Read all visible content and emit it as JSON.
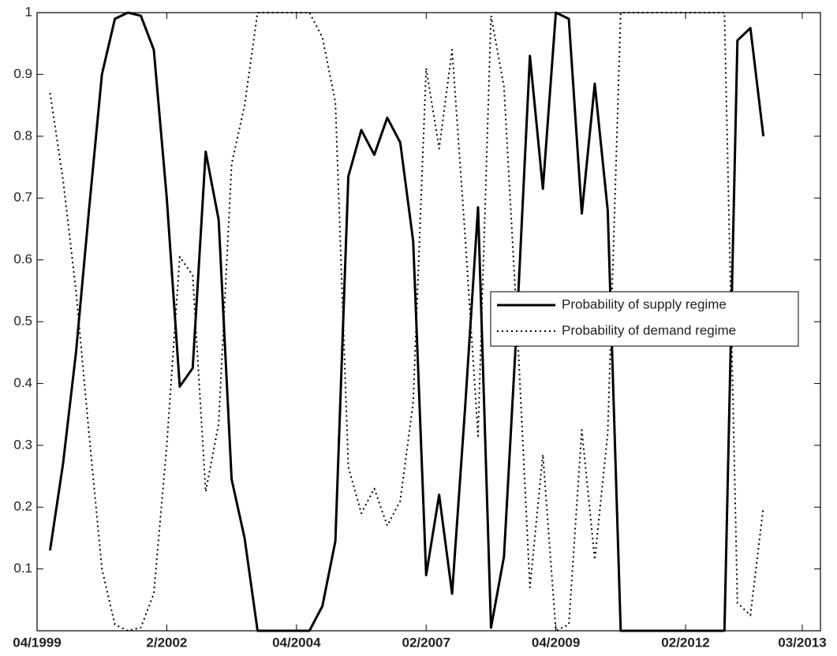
{
  "chart_data": {
    "type": "line",
    "x": [
      1,
      2,
      3,
      4,
      5,
      6,
      7,
      8,
      9,
      10,
      11,
      12,
      13,
      14,
      15,
      16,
      17,
      18,
      19,
      20,
      21,
      22,
      23,
      24,
      25,
      26,
      27,
      28,
      29,
      30,
      31,
      32,
      33,
      34,
      35,
      36,
      37,
      38,
      39,
      40,
      41,
      42,
      43,
      44,
      45,
      46,
      47,
      48,
      49,
      50,
      51,
      52,
      53,
      54,
      55,
      56
    ],
    "series": [
      {
        "name": "Probability of supply regime",
        "color": "#000000",
        "style": "solid",
        "values": [
          0.13,
          0.27,
          0.45,
          0.68,
          0.9,
          0.99,
          1,
          0.995,
          0.94,
          0.7,
          0.395,
          0.425,
          0.775,
          0.665,
          0.245,
          0.15,
          0,
          0,
          0,
          0,
          0,
          0.04,
          0.145,
          0.735,
          0.81,
          0.77,
          0.83,
          0.79,
          0.63,
          0.09,
          0.22,
          0.06,
          0.36,
          0.685,
          0.005,
          0.12,
          0.5,
          0.93,
          0.715,
          1,
          0.99,
          0.675,
          0.885,
          0.68,
          0,
          0,
          0,
          0,
          0,
          0,
          0,
          0,
          0,
          0.955,
          0.975,
          0.8
        ]
      },
      {
        "name": "Probability of demand regime",
        "color": "#000000",
        "style": "dotted",
        "values": [
          0.87,
          0.73,
          0.55,
          0.32,
          0.1,
          0.01,
          0,
          0.005,
          0.06,
          0.3,
          0.605,
          0.575,
          0.225,
          0.335,
          0.755,
          0.85,
          1,
          1,
          1,
          1,
          1,
          0.96,
          0.855,
          0.265,
          0.19,
          0.23,
          0.17,
          0.21,
          0.37,
          0.91,
          0.78,
          0.94,
          0.64,
          0.315,
          0.995,
          0.88,
          0.5,
          0.07,
          0.285,
          0,
          0.01,
          0.325,
          0.115,
          0.32,
          1,
          1,
          1,
          1,
          1,
          1,
          1,
          1,
          1,
          0.045,
          0.025,
          0.2
        ]
      }
    ],
    "xlim": [
      0,
      60.4
    ],
    "xticks": [
      {
        "value": 0,
        "label": "04/1999"
      },
      {
        "value": 10,
        "label": "2/2002"
      },
      {
        "value": 20,
        "label": "04/2004"
      },
      {
        "value": 30,
        "label": "02/2007"
      },
      {
        "value": 40,
        "label": "04/2009"
      },
      {
        "value": 50,
        "label": "02/2012"
      },
      {
        "value": 59,
        "label": "03/2013"
      }
    ],
    "ylim": [
      0,
      1
    ],
    "yticks": [
      0.1,
      0.2,
      0.3,
      0.4,
      0.5,
      0.6,
      0.7,
      0.8,
      0.9,
      1
    ],
    "grid": false,
    "legend": "right"
  }
}
